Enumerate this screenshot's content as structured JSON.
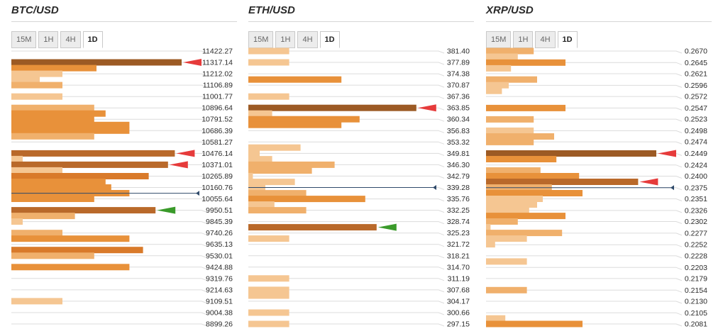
{
  "timeframes": [
    "15M",
    "1H",
    "4H",
    "1D"
  ],
  "active_timeframe": "1D",
  "colors": {
    "level1": "#f5c692",
    "level2": "#f0b06c",
    "level3": "#e8913a",
    "level4": "#d97a2a",
    "level5": "#b9692a",
    "level6": "#9c5a24",
    "resistance_arrow": "#e63b3b",
    "support_arrow": "#3a9a2a",
    "price_line": "#2f4a6a",
    "grid": "#dcdcdc"
  },
  "chart_data": [
    {
      "type": "bar",
      "title": "BTC/USD",
      "orientation": "horizontal",
      "current_price": 10108,
      "price_labels": [
        "11422.27",
        "11317.14",
        "11212.02",
        "11106.89",
        "11001.77",
        "10896.64",
        "10791.52",
        "10686.39",
        "10581.27",
        "10476.14",
        "10371.01",
        "10265.89",
        "10160.76",
        "10055.64",
        "9950.51",
        "9845.39",
        "9740.26",
        "9635.13",
        "9530.01",
        "9424.88",
        "9319.76",
        "9214.63",
        "9109.51",
        "9004.38",
        "8899.26"
      ],
      "bars": [
        {
          "price": 11317.14,
          "strength": 15,
          "level": 6,
          "arrow": "resistance"
        },
        {
          "price": 11264.6,
          "strength": 7.5,
          "level": 3
        },
        {
          "price": 11212.02,
          "strength": 4.5,
          "level": 1
        },
        {
          "price": 11159.5,
          "strength": 2.5,
          "level": 1
        },
        {
          "price": 11106.89,
          "strength": 4.5,
          "level": 2
        },
        {
          "price": 11001.77,
          "strength": 4.5,
          "level": 1
        },
        {
          "price": 10896.64,
          "strength": 7.3,
          "level": 2
        },
        {
          "price": 10844.1,
          "strength": 8.3,
          "level": 3
        },
        {
          "price": 10791.52,
          "strength": 7.3,
          "level": 3
        },
        {
          "price": 10739.0,
          "strength": 10.4,
          "level": 3
        },
        {
          "price": 10686.39,
          "strength": 10.4,
          "level": 3
        },
        {
          "price": 10633.8,
          "strength": 7.3,
          "level": 2
        },
        {
          "price": 10476.14,
          "strength": 14.4,
          "level": 5,
          "arrow": "resistance"
        },
        {
          "price": 10423.6,
          "strength": 1,
          "level": 1
        },
        {
          "price": 10371.01,
          "strength": 13.8,
          "level": 5,
          "arrow": "resistance"
        },
        {
          "price": 10318.5,
          "strength": 4.5,
          "level": 1
        },
        {
          "price": 10265.89,
          "strength": 12.1,
          "level": 4
        },
        {
          "price": 10213.3,
          "strength": 8.3,
          "level": 3
        },
        {
          "price": 10160.76,
          "strength": 8.8,
          "level": 3
        },
        {
          "price": 10108.2,
          "strength": 10.4,
          "level": 3
        },
        {
          "price": 10055.64,
          "strength": 7.3,
          "level": 3
        },
        {
          "price": 9950.51,
          "strength": 12.7,
          "level": 5,
          "arrow": "support"
        },
        {
          "price": 9898.0,
          "strength": 5.6,
          "level": 2
        },
        {
          "price": 9845.39,
          "strength": 1,
          "level": 1
        },
        {
          "price": 9740.26,
          "strength": 4.5,
          "level": 2
        },
        {
          "price": 9687.7,
          "strength": 10.4,
          "level": 3
        },
        {
          "price": 9582.6,
          "strength": 11.6,
          "level": 4
        },
        {
          "price": 9530.01,
          "strength": 7.3,
          "level": 2
        },
        {
          "price": 9424.88,
          "strength": 10.4,
          "level": 3
        },
        {
          "price": 9109.51,
          "strength": 4.5,
          "level": 1
        }
      ]
    },
    {
      "type": "bar",
      "title": "ETH/USD",
      "orientation": "horizontal",
      "current_price": 339.28,
      "price_labels": [
        "381.40",
        "377.89",
        "374.38",
        "370.87",
        "367.36",
        "363.85",
        "360.34",
        "356.83",
        "353.32",
        "349.81",
        "346.30",
        "342.79",
        "339.28",
        "335.76",
        "332.25",
        "328.74",
        "325.23",
        "321.72",
        "318.21",
        "314.70",
        "311.19",
        "307.68",
        "304.17",
        "300.66",
        "297.15"
      ],
      "bars": [
        {
          "price": 381.4,
          "strength": 3.6,
          "level": 1
        },
        {
          "price": 377.89,
          "strength": 3.6,
          "level": 1
        },
        {
          "price": 372.6,
          "strength": 8.2,
          "level": 3
        },
        {
          "price": 367.36,
          "strength": 3.6,
          "level": 1
        },
        {
          "price": 363.85,
          "strength": 14.8,
          "level": 6,
          "arrow": "resistance"
        },
        {
          "price": 362.1,
          "strength": 2.1,
          "level": 1
        },
        {
          "price": 360.34,
          "strength": 9.8,
          "level": 3
        },
        {
          "price": 358.6,
          "strength": 8.2,
          "level": 3
        },
        {
          "price": 351.6,
          "strength": 4.6,
          "level": 1
        },
        {
          "price": 349.81,
          "strength": 1,
          "level": 1
        },
        {
          "price": 348.0,
          "strength": 2.1,
          "level": 1
        },
        {
          "price": 346.3,
          "strength": 7.6,
          "level": 2
        },
        {
          "price": 344.5,
          "strength": 5.6,
          "level": 2
        },
        {
          "price": 342.79,
          "strength": 0.4,
          "level": 1
        },
        {
          "price": 341.0,
          "strength": 4.1,
          "level": 1
        },
        {
          "price": 339.28,
          "strength": 1.5,
          "level": 1
        },
        {
          "price": 337.5,
          "strength": 5.1,
          "level": 2
        },
        {
          "price": 335.76,
          "strength": 10.3,
          "level": 3
        },
        {
          "price": 334.0,
          "strength": 2.3,
          "level": 1
        },
        {
          "price": 332.25,
          "strength": 5.1,
          "level": 2
        },
        {
          "price": 327.0,
          "strength": 11.3,
          "level": 5,
          "arrow": "support"
        },
        {
          "price": 323.5,
          "strength": 3.6,
          "level": 1
        },
        {
          "price": 311.19,
          "strength": 3.6,
          "level": 1
        },
        {
          "price": 307.68,
          "strength": 3.6,
          "level": 1
        },
        {
          "price": 305.9,
          "strength": 3.6,
          "level": 1
        },
        {
          "price": 300.66,
          "strength": 3.6,
          "level": 1
        },
        {
          "price": 297.15,
          "strength": 3.6,
          "level": 1
        }
      ]
    },
    {
      "type": "bar",
      "title": "XRP/USD",
      "orientation": "horizontal",
      "current_price": 0.2375,
      "price_labels": [
        "0.2670",
        "0.2645",
        "0.2621",
        "0.2596",
        "0.2572",
        "0.2547",
        "0.2523",
        "0.2498",
        "0.2474",
        "0.2449",
        "0.2424",
        "0.2400",
        "0.2375",
        "0.2351",
        "0.2326",
        "0.2302",
        "0.2277",
        "0.2252",
        "0.2228",
        "0.2203",
        "0.2179",
        "0.2154",
        "0.2130",
        "0.2105",
        "0.2081"
      ],
      "bars": [
        {
          "price": 0.267,
          "strength": 4.2,
          "level": 2
        },
        {
          "price": 0.26577,
          "strength": 2.8,
          "level": 1
        },
        {
          "price": 0.2645,
          "strength": 7.0,
          "level": 3
        },
        {
          "price": 0.26327,
          "strength": 2.2,
          "level": 1
        },
        {
          "price": 0.26085,
          "strength": 4.5,
          "level": 2
        },
        {
          "price": 0.25962,
          "strength": 2.0,
          "level": 1
        },
        {
          "price": 0.2584,
          "strength": 1.4,
          "level": 1
        },
        {
          "price": 0.2547,
          "strength": 7.0,
          "level": 3
        },
        {
          "price": 0.25225,
          "strength": 4.2,
          "level": 2
        },
        {
          "price": 0.2498,
          "strength": 4.2,
          "level": 1
        },
        {
          "price": 0.24857,
          "strength": 6.0,
          "level": 2
        },
        {
          "price": 0.24735,
          "strength": 4.2,
          "level": 2
        },
        {
          "price": 0.2449,
          "strength": 15.0,
          "level": 6,
          "arrow": "resistance"
        },
        {
          "price": 0.24367,
          "strength": 6.2,
          "level": 3
        },
        {
          "price": 0.24122,
          "strength": 4.8,
          "level": 2
        },
        {
          "price": 0.24,
          "strength": 8.2,
          "level": 3
        },
        {
          "price": 0.23877,
          "strength": 13.4,
          "level": 5,
          "arrow": "resistance"
        },
        {
          "price": 0.23755,
          "strength": 5.8,
          "level": 2
        },
        {
          "price": 0.23632,
          "strength": 8.5,
          "level": 3
        },
        {
          "price": 0.2351,
          "strength": 5.0,
          "level": 1
        },
        {
          "price": 0.23387,
          "strength": 4.5,
          "level": 1
        },
        {
          "price": 0.23265,
          "strength": 3.8,
          "level": 1
        },
        {
          "price": 0.23142,
          "strength": 7.0,
          "level": 3
        },
        {
          "price": 0.2302,
          "strength": 2.8,
          "level": 2
        },
        {
          "price": 0.22897,
          "strength": 0.4,
          "level": 1
        },
        {
          "price": 0.22775,
          "strength": 6.7,
          "level": 2
        },
        {
          "price": 0.22652,
          "strength": 3.6,
          "level": 1
        },
        {
          "price": 0.2253,
          "strength": 0.8,
          "level": 1
        },
        {
          "price": 0.22158,
          "strength": 3.6,
          "level": 1
        },
        {
          "price": 0.2154,
          "strength": 3.6,
          "level": 2
        },
        {
          "price": 0.2093,
          "strength": 1.7,
          "level": 1
        },
        {
          "price": 0.2081,
          "strength": 8.5,
          "level": 3
        }
      ]
    }
  ]
}
